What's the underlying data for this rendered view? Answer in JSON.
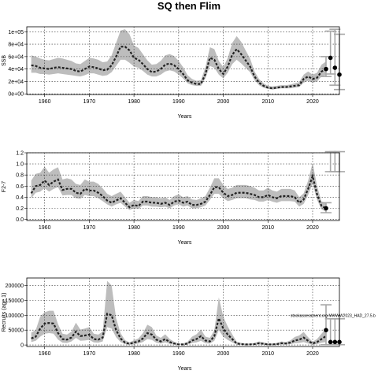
{
  "title": "SQ then Flim",
  "chart_data": [
    {
      "type": "line",
      "ylabel": "SSB",
      "xlabel": "Years",
      "xlim": [
        1956,
        2026
      ],
      "ylim": [
        -1000,
        108000
      ],
      "xticks": [
        1960,
        1970,
        1980,
        1990,
        2000,
        2010,
        2020
      ],
      "yticks": [
        0,
        20000,
        40000,
        60000,
        80000,
        100000
      ],
      "ytick_labels": [
        "0e+00",
        "2e+04",
        "4e+04",
        "6e+04",
        "8e+04",
        "1e+05"
      ],
      "grid": true,
      "series": [
        {
          "x": [
            1957,
            1958,
            1959,
            1960,
            1961,
            1962,
            1963,
            1964,
            1965,
            1966,
            1967,
            1968,
            1969,
            1970,
            1971,
            1972,
            1973,
            1974,
            1975,
            1976,
            1977,
            1978,
            1979,
            1980,
            1981,
            1982,
            1983,
            1984,
            1985,
            1986,
            1987,
            1988,
            1989,
            1990,
            1991,
            1992,
            1993,
            1994,
            1995,
            1996,
            1997,
            1998,
            1999,
            2000,
            2001,
            2002,
            2003,
            2004,
            2005,
            2006,
            2007,
            2008,
            2009,
            2010,
            2011,
            2012,
            2013,
            2014,
            2015,
            2016,
            2017,
            2018,
            2019,
            2020,
            2021,
            2022,
            2023
          ],
          "y": [
            46000,
            45000,
            42000,
            41000,
            40000,
            42000,
            43000,
            42000,
            41000,
            40000,
            37000,
            36000,
            40000,
            44000,
            43000,
            41000,
            38000,
            39000,
            46000,
            60000,
            76000,
            76000,
            70000,
            58000,
            55000,
            48000,
            40000,
            35000,
            36000,
            40000,
            47000,
            49000,
            46000,
            40000,
            32000,
            22000,
            18000,
            16000,
            16000,
            32000,
            58000,
            55000,
            40000,
            32000,
            44000,
            63000,
            72000,
            64000,
            54000,
            44000,
            28000,
            18000,
            13000,
            10000,
            9000,
            10000,
            11000,
            11000,
            12000,
            13000,
            14000,
            24000,
            28000,
            24000,
            26000,
            36000,
            40000
          ],
          "lower": [
            34000,
            34000,
            32000,
            32000,
            31000,
            32000,
            33000,
            32000,
            31000,
            30000,
            29000,
            28000,
            30000,
            33000,
            33000,
            31000,
            29000,
            30000,
            35000,
            45000,
            55000,
            55000,
            50000,
            44000,
            42000,
            37000,
            31000,
            28000,
            28000,
            31000,
            36000,
            38000,
            36000,
            31000,
            25000,
            17000,
            14000,
            13000,
            13000,
            25000,
            45000,
            42000,
            31000,
            25000,
            34000,
            48000,
            55000,
            49000,
            42000,
            35000,
            22000,
            14000,
            10000,
            8000,
            7000,
            8000,
            9000,
            9000,
            9000,
            10000,
            11000,
            18000,
            21000,
            18000,
            20000,
            28000,
            30000
          ],
          "upper": [
            62000,
            60000,
            57000,
            55000,
            54000,
            56000,
            58000,
            57000,
            55000,
            53000,
            49000,
            48000,
            53000,
            58000,
            57000,
            55000,
            51000,
            52000,
            62000,
            82000,
            102000,
            104000,
            96000,
            78000,
            74000,
            64000,
            54000,
            47000,
            48000,
            53000,
            62000,
            64000,
            61000,
            53000,
            43000,
            30000,
            24000,
            21000,
            22000,
            43000,
            75000,
            72000,
            53000,
            43000,
            58000,
            82000,
            93000,
            84000,
            70000,
            57000,
            36000,
            24000,
            17000,
            13000,
            12000,
            13000,
            14000,
            14000,
            15000,
            17000,
            19000,
            31000,
            36000,
            31000,
            34000,
            47000,
            52000
          ]
        }
      ],
      "projection_points": [
        {
          "x": 2023,
          "y": 40000
        },
        {
          "x": 2024,
          "y": 58000
        },
        {
          "x": 2025,
          "y": 42000
        },
        {
          "x": 2026,
          "y": 31000
        }
      ],
      "projection_bars": [
        {
          "x": 2023,
          "low": 28000,
          "high": 60000
        },
        {
          "x": 2024,
          "low": 32000,
          "high": 101000
        },
        {
          "x": 2025,
          "low": 14000,
          "high": 104000
        },
        {
          "x": 2026,
          "low": 7000,
          "high": 96000
        }
      ]
    },
    {
      "type": "line",
      "ylabel": "F2-7",
      "xlabel": "Years",
      "xlim": [
        1956,
        2026
      ],
      "ylim": [
        -0.02,
        1.2
      ],
      "xticks": [
        1960,
        1970,
        1980,
        1990,
        2000,
        2010,
        2020
      ],
      "yticks": [
        0.0,
        0.2,
        0.4,
        0.6,
        0.8,
        1.0,
        1.2
      ],
      "ytick_labels": [
        "0.0",
        "0.2",
        "0.4",
        "0.6",
        "0.8",
        "1.0",
        "1.2"
      ],
      "grid": true,
      "series": [
        {
          "x": [
            1957,
            1958,
            1959,
            1960,
            1961,
            1962,
            1963,
            1964,
            1965,
            1966,
            1967,
            1968,
            1969,
            1970,
            1971,
            1972,
            1973,
            1974,
            1975,
            1976,
            1977,
            1978,
            1979,
            1980,
            1981,
            1982,
            1983,
            1984,
            1985,
            1986,
            1987,
            1988,
            1989,
            1990,
            1991,
            1992,
            1993,
            1994,
            1995,
            1996,
            1997,
            1998,
            1999,
            2000,
            2001,
            2002,
            2003,
            2004,
            2005,
            2006,
            2007,
            2008,
            2009,
            2010,
            2011,
            2012,
            2013,
            2014,
            2015,
            2016,
            2017,
            2018,
            2019,
            2020,
            2021,
            2022,
            2023
          ],
          "y": [
            0.47,
            0.6,
            0.62,
            0.7,
            0.62,
            0.68,
            0.72,
            0.53,
            0.55,
            0.55,
            0.48,
            0.46,
            0.55,
            0.52,
            0.52,
            0.48,
            0.42,
            0.34,
            0.3,
            0.34,
            0.38,
            0.3,
            0.22,
            0.26,
            0.24,
            0.32,
            0.32,
            0.3,
            0.3,
            0.28,
            0.3,
            0.26,
            0.32,
            0.34,
            0.3,
            0.32,
            0.26,
            0.26,
            0.28,
            0.32,
            0.44,
            0.58,
            0.58,
            0.48,
            0.42,
            0.44,
            0.48,
            0.48,
            0.48,
            0.46,
            0.44,
            0.4,
            0.4,
            0.44,
            0.4,
            0.38,
            0.42,
            0.42,
            0.42,
            0.4,
            0.3,
            0.36,
            0.55,
            0.78,
            0.45,
            0.24,
            0.2
          ],
          "lower": [
            0.38,
            0.48,
            0.5,
            0.56,
            0.5,
            0.55,
            0.58,
            0.43,
            0.44,
            0.44,
            0.38,
            0.37,
            0.44,
            0.42,
            0.42,
            0.38,
            0.33,
            0.27,
            0.23,
            0.27,
            0.3,
            0.23,
            0.17,
            0.2,
            0.19,
            0.25,
            0.25,
            0.23,
            0.23,
            0.22,
            0.23,
            0.2,
            0.25,
            0.27,
            0.23,
            0.25,
            0.2,
            0.2,
            0.22,
            0.25,
            0.35,
            0.46,
            0.46,
            0.38,
            0.33,
            0.35,
            0.38,
            0.38,
            0.38,
            0.36,
            0.35,
            0.32,
            0.32,
            0.35,
            0.32,
            0.3,
            0.33,
            0.33,
            0.33,
            0.32,
            0.23,
            0.28,
            0.44,
            0.64,
            0.35,
            0.18,
            0.14
          ],
          "upper": [
            0.7,
            0.82,
            0.84,
            0.95,
            0.84,
            0.9,
            0.94,
            0.72,
            0.74,
            0.72,
            0.64,
            0.62,
            0.72,
            0.68,
            0.68,
            0.64,
            0.56,
            0.46,
            0.42,
            0.46,
            0.5,
            0.4,
            0.3,
            0.35,
            0.33,
            0.42,
            0.42,
            0.4,
            0.4,
            0.38,
            0.4,
            0.35,
            0.42,
            0.45,
            0.4,
            0.42,
            0.36,
            0.35,
            0.38,
            0.42,
            0.57,
            0.74,
            0.74,
            0.62,
            0.55,
            0.57,
            0.62,
            0.62,
            0.62,
            0.6,
            0.57,
            0.52,
            0.52,
            0.57,
            0.52,
            0.5,
            0.55,
            0.55,
            0.55,
            0.52,
            0.4,
            0.47,
            0.7,
            1.02,
            0.6,
            0.32,
            0.3
          ]
        }
      ],
      "projection_points": [
        {
          "x": 2023,
          "y": 0.2
        }
      ],
      "projection_bars": [
        {
          "x": 2023,
          "low": 0.12,
          "high": 0.3
        },
        {
          "x": 2024,
          "low": 0.86,
          "high": 1.22
        },
        {
          "x": 2025,
          "low": 0.86,
          "high": 1.22
        },
        {
          "x": 2026,
          "low": 0.86,
          "high": 1.22
        }
      ]
    },
    {
      "type": "line",
      "ylabel": "Recruits (age 1)",
      "xlabel": "Years",
      "xlim": [
        1956,
        2026
      ],
      "ylim": [
        -5000,
        225000
      ],
      "xticks": [
        1960,
        1970,
        1980,
        1990,
        2000,
        2010,
        2020
      ],
      "yticks": [
        0,
        50000,
        100000,
        150000,
        200000
      ],
      "ytick_labels": [
        "0",
        "50000",
        "100000",
        "150000",
        "200000"
      ],
      "grid": true,
      "annotation": "stockassessment.org MWWW2023_HAD_27.5.b",
      "series": [
        {
          "x": [
            1957,
            1958,
            1959,
            1960,
            1961,
            1962,
            1963,
            1964,
            1965,
            1966,
            1967,
            1968,
            1969,
            1970,
            1971,
            1972,
            1973,
            1974,
            1975,
            1976,
            1977,
            1978,
            1979,
            1980,
            1981,
            1982,
            1983,
            1984,
            1985,
            1986,
            1987,
            1988,
            1989,
            1990,
            1991,
            1992,
            1993,
            1994,
            1995,
            1996,
            1997,
            1998,
            1999,
            2000,
            2001,
            2002,
            2003,
            2004,
            2005,
            2006,
            2007,
            2008,
            2009,
            2010,
            2011,
            2012,
            2013,
            2014,
            2015,
            2016,
            2017,
            2018,
            2019,
            2020,
            2021,
            2022,
            2023
          ],
          "y": [
            22000,
            28000,
            55000,
            72000,
            74000,
            72000,
            40000,
            20000,
            18000,
            25000,
            45000,
            30000,
            32000,
            35000,
            20000,
            18000,
            25000,
            105000,
            100000,
            50000,
            22000,
            8000,
            4000,
            8000,
            12000,
            22000,
            40000,
            35000,
            18000,
            12000,
            20000,
            10000,
            5000,
            2000,
            2000,
            5000,
            15000,
            20000,
            30000,
            15000,
            12000,
            30000,
            90000,
            55000,
            35000,
            20000,
            5000,
            3000,
            2000,
            2000,
            3000,
            6000,
            4000,
            2000,
            2000,
            3000,
            6000,
            5000,
            8000,
            15000,
            18000,
            25000,
            14000,
            5000,
            10000,
            20000,
            30000
          ],
          "lower": [
            10000,
            14000,
            28000,
            38000,
            40000,
            38000,
            18000,
            8000,
            7000,
            12000,
            24000,
            14000,
            15000,
            17000,
            9000,
            8000,
            12000,
            60000,
            55000,
            26000,
            10000,
            3000,
            1000,
            3000,
            5000,
            10000,
            20000,
            17000,
            8000,
            5000,
            9000,
            4000,
            1500,
            500,
            500,
            1500,
            7000,
            9000,
            14000,
            6000,
            5000,
            14000,
            50000,
            28000,
            17000,
            9000,
            1500,
            800,
            500,
            500,
            800,
            2000,
            1200,
            500,
            500,
            800,
            2000,
            1500,
            3000,
            6000,
            7000,
            10000,
            5000,
            1500,
            3000,
            8000,
            10000
          ],
          "upper": [
            42000,
            50000,
            95000,
            110000,
            115000,
            115000,
            70000,
            38000,
            35000,
            45000,
            75000,
            52000,
            55000,
            60000,
            38000,
            35000,
            45000,
            215000,
            200000,
            90000,
            40000,
            16000,
            9000,
            16000,
            22000,
            40000,
            68000,
            60000,
            32000,
            24000,
            36000,
            20000,
            11000,
            5000,
            5000,
            11000,
            28000,
            36000,
            52000,
            28000,
            24000,
            50000,
            160000,
            95000,
            62000,
            36000,
            11000,
            7000,
            5000,
            5000,
            7000,
            12000,
            9000,
            5000,
            5000,
            7000,
            12000,
            10000,
            15000,
            27000,
            32000,
            44000,
            26000,
            11000,
            20000,
            38000,
            55000
          ]
        }
      ],
      "projection_points": [
        {
          "x": 2023,
          "y": 50000
        },
        {
          "x": 2024,
          "y": 10000
        },
        {
          "x": 2025,
          "y": 10000
        },
        {
          "x": 2026,
          "y": 10000
        }
      ],
      "projection_bars": [
        {
          "x": 2023,
          "low": 1000,
          "high": 135000
        },
        {
          "x": 2024,
          "low": 1000,
          "high": 88000
        },
        {
          "x": 2025,
          "low": 1000,
          "high": 88000
        },
        {
          "x": 2026,
          "low": 1000,
          "high": 88000
        }
      ]
    }
  ]
}
